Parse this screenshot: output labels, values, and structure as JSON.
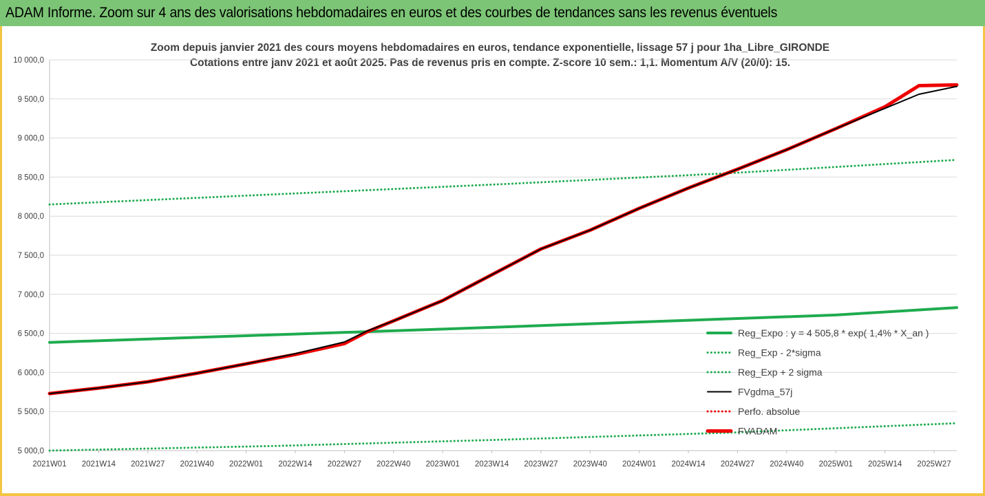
{
  "header": {
    "banner_title": "ADAM Informe. Zoom sur 4 ans des valorisations hebdomadaires en euros et des courbes de tendances sans les revenus éventuels"
  },
  "colors": {
    "banner_bg": "#7cc576",
    "frame_border": "#f4c542",
    "reg_expo": "#1fab4f",
    "fvgdma": "#000000",
    "fvadam": "#ee0000",
    "perfo": "#ee0000"
  },
  "chart_data": {
    "type": "line",
    "title": "Zoom depuis janvier 2021 des cours moyens hebdomadaires en euros, tendance exponentielle, lissage 57 j pour 1ha_Libre_GIRONDE",
    "subtitle": "Cotations entre janv 2021 et août 2025. Pas de revenus pris en compte. Z-score 10 sem.: 1,1. Momentum A/V (20/0): 15.",
    "ylim": [
      5000,
      10000
    ],
    "yticks": [
      "5 000,0",
      "5 500,0",
      "6 000,0",
      "6 500,0",
      "7 000,0",
      "7 500,0",
      "8 000,0",
      "8 500,0",
      "9 000,0",
      "9 500,0",
      "10 000,0"
    ],
    "yticks_values": [
      5000,
      5500,
      6000,
      6500,
      7000,
      7500,
      8000,
      8500,
      9000,
      9500,
      10000
    ],
    "x_week_range": [
      0,
      240
    ],
    "xticks": [
      "2021W01",
      "2021W14",
      "2021W27",
      "2021W40",
      "2022W01",
      "2022W14",
      "2022W27",
      "2022W40",
      "2023W01",
      "2023W14",
      "2023W27",
      "2023W40",
      "2024W01",
      "2024W14",
      "2024W27",
      "2024W40",
      "2025W01",
      "2025W14",
      "2025W27"
    ],
    "grid": "horizontal",
    "legend_position": "bottom-right",
    "series": [
      {
        "name": "Reg_Expo : y = 4 505,8 * exp( 1,4% *  X_an )",
        "style": "solid-thick",
        "color": "#1fab4f",
        "points": [
          [
            0,
            6385
          ],
          [
            52,
            6470
          ],
          [
            104,
            6555
          ],
          [
            156,
            6645
          ],
          [
            208,
            6735
          ],
          [
            240,
            6830
          ]
        ]
      },
      {
        "name": "Reg_Exp - 2*sigma",
        "style": "dotted",
        "color": "#1fab4f",
        "points": [
          [
            0,
            5000
          ],
          [
            60,
            5060
          ],
          [
            120,
            5140
          ],
          [
            180,
            5230
          ],
          [
            240,
            5350
          ]
        ]
      },
      {
        "name": "Reg_Exp + 2 sigma",
        "style": "dotted",
        "color": "#1fab4f",
        "points": [
          [
            0,
            8150
          ],
          [
            60,
            8280
          ],
          [
            120,
            8410
          ],
          [
            180,
            8550
          ],
          [
            240,
            8720
          ]
        ]
      },
      {
        "name": "FVgdma_57j",
        "style": "solid",
        "color": "#000000",
        "points": [
          [
            0,
            5730
          ],
          [
            13,
            5800
          ],
          [
            26,
            5880
          ],
          [
            39,
            5990
          ],
          [
            52,
            6110
          ],
          [
            65,
            6240
          ],
          [
            78,
            6390
          ],
          [
            84,
            6530
          ],
          [
            91,
            6660
          ],
          [
            104,
            6920
          ],
          [
            117,
            7250
          ],
          [
            130,
            7580
          ],
          [
            143,
            7820
          ],
          [
            156,
            8100
          ],
          [
            169,
            8360
          ],
          [
            182,
            8600
          ],
          [
            195,
            8850
          ],
          [
            208,
            9120
          ],
          [
            221,
            9380
          ],
          [
            230,
            9560
          ],
          [
            240,
            9660
          ]
        ]
      },
      {
        "name": "Perfo. absolue",
        "style": "dotted",
        "color": "#ee0000",
        "points": []
      },
      {
        "name": "FVADAM",
        "style": "solid-thick",
        "color": "#ee0000",
        "points": [
          [
            0,
            5730
          ],
          [
            13,
            5800
          ],
          [
            26,
            5880
          ],
          [
            39,
            5990
          ],
          [
            52,
            6110
          ],
          [
            65,
            6230
          ],
          [
            78,
            6370
          ],
          [
            84,
            6520
          ],
          [
            91,
            6660
          ],
          [
            104,
            6920
          ],
          [
            117,
            7250
          ],
          [
            130,
            7580
          ],
          [
            143,
            7820
          ],
          [
            156,
            8100
          ],
          [
            169,
            8360
          ],
          [
            182,
            8600
          ],
          [
            195,
            8850
          ],
          [
            208,
            9120
          ],
          [
            221,
            9400
          ],
          [
            230,
            9670
          ],
          [
            240,
            9680
          ]
        ]
      }
    ]
  }
}
